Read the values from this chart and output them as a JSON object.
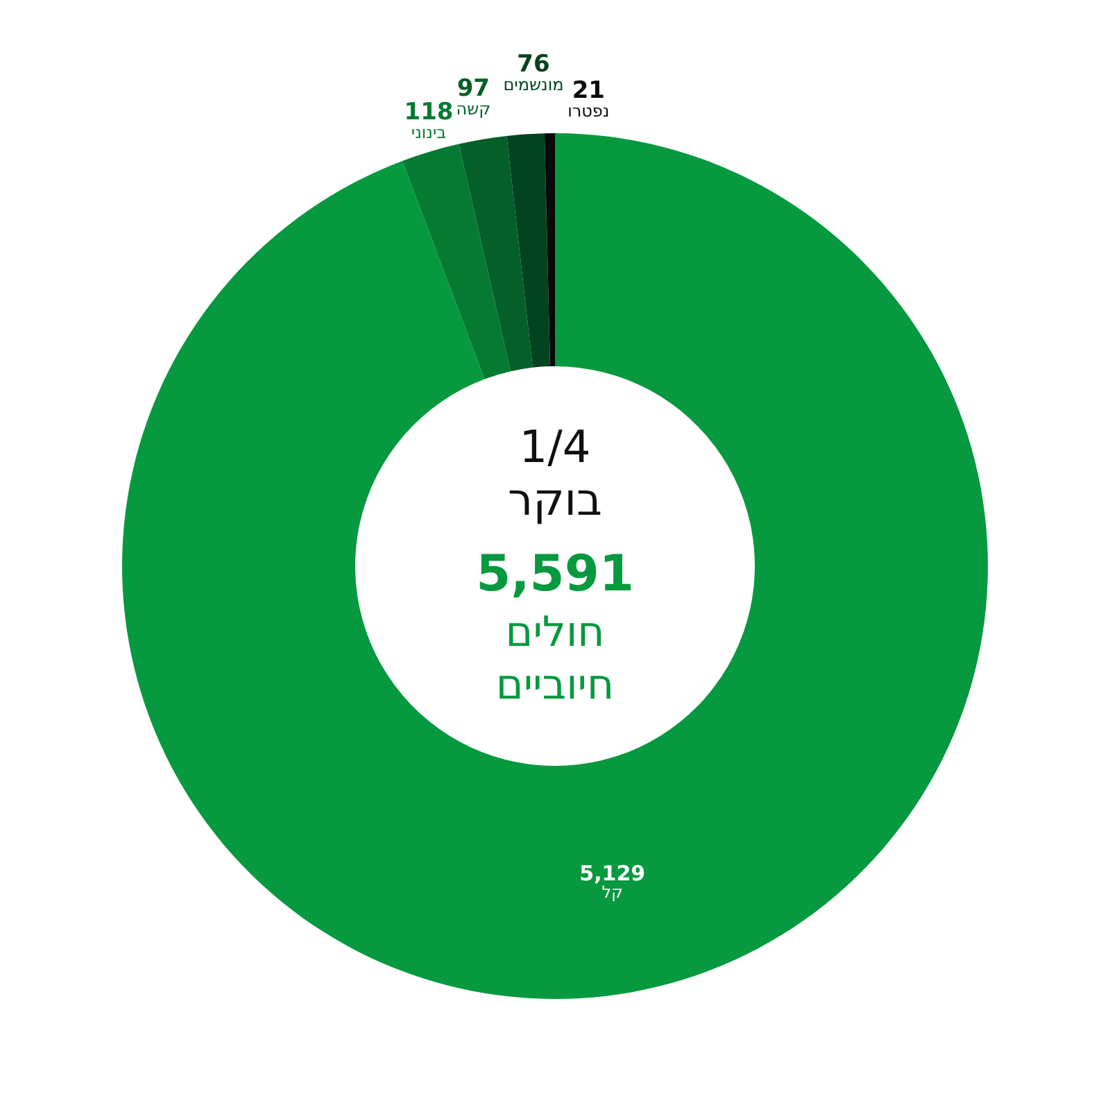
{
  "chart_data": {
    "type": "donut",
    "title": "1/4 בוקר",
    "annotations": [
      "5,591",
      "חולים חיוביים"
    ],
    "categories": [
      "קל",
      "בינוני",
      "קשה",
      "מונשמים",
      "נפטרו"
    ],
    "values": [
      5129,
      118,
      97,
      76,
      21
    ],
    "value_labels": [
      "5,129",
      "118",
      "97",
      "76",
      "21"
    ],
    "colors": [
      "#07993f",
      "#067a32",
      "#055f29",
      "#034420",
      "#0a0a0a"
    ],
    "legend": false
  }
}
